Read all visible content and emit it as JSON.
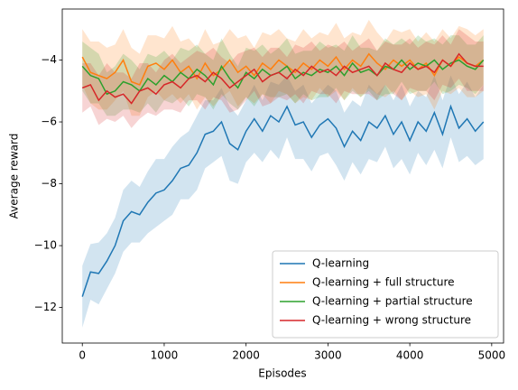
{
  "chart_data": {
    "type": "line",
    "xlabel": "Episodes",
    "ylabel": "Average reward",
    "x": [
      0,
      100,
      200,
      300,
      400,
      500,
      600,
      700,
      800,
      900,
      1000,
      1100,
      1200,
      1300,
      1400,
      1500,
      1600,
      1700,
      1800,
      1900,
      2000,
      2100,
      2200,
      2300,
      2400,
      2500,
      2600,
      2700,
      2800,
      2900,
      3000,
      3100,
      3200,
      3300,
      3400,
      3500,
      3600,
      3700,
      3800,
      3900,
      4000,
      4100,
      4200,
      4300,
      4400,
      4500,
      4600,
      4700,
      4800,
      4900
    ],
    "series": [
      {
        "name": "Q-learning",
        "color": "#1f77b4",
        "values": [
          -11.65,
          -10.85,
          -10.9,
          -10.5,
          -10.0,
          -9.2,
          -8.9,
          -9.0,
          -8.6,
          -8.3,
          -8.2,
          -7.9,
          -7.5,
          -7.4,
          -7.0,
          -6.4,
          -6.3,
          -6.0,
          -6.7,
          -6.9,
          -6.3,
          -5.9,
          -6.3,
          -5.8,
          -6.0,
          -5.5,
          -6.1,
          -6.0,
          -6.5,
          -6.1,
          -5.9,
          -6.2,
          -6.8,
          -6.3,
          -6.6,
          -6.0,
          -6.2,
          -5.8,
          -6.4,
          -6.0,
          -6.6,
          -6.0,
          -6.3,
          -5.7,
          -6.4,
          -5.5,
          -6.2,
          -5.9,
          -6.3,
          -6.0
        ],
        "error": [
          1.0,
          0.9,
          1.0,
          0.9,
          0.9,
          1.0,
          1.0,
          0.9,
          1.0,
          1.1,
          1.0,
          1.1,
          1.0,
          1.1,
          1.2,
          1.1,
          1.0,
          1.1,
          1.2,
          1.1,
          1.0,
          1.1,
          1.0,
          1.1,
          1.2,
          1.0,
          1.1,
          1.2,
          1.1,
          1.0,
          1.1,
          1.2,
          1.1,
          1.0,
          1.1,
          1.2,
          1.1,
          1.0,
          1.1,
          1.2,
          1.1,
          1.0,
          1.1,
          1.2,
          1.1,
          1.0,
          1.1,
          1.2,
          1.1,
          1.2
        ]
      },
      {
        "name": "Q-learning + full structure",
        "color": "#ff7f0e",
        "values": [
          -3.9,
          -4.4,
          -4.5,
          -4.6,
          -4.4,
          -4.0,
          -4.7,
          -4.8,
          -4.2,
          -4.1,
          -4.3,
          -4.0,
          -4.4,
          -4.2,
          -4.6,
          -4.1,
          -4.5,
          -4.3,
          -4.0,
          -4.4,
          -4.2,
          -4.5,
          -4.1,
          -4.3,
          -4.0,
          -4.2,
          -4.4,
          -4.1,
          -4.3,
          -4.0,
          -4.2,
          -3.9,
          -4.3,
          -4.0,
          -4.2,
          -3.8,
          -4.1,
          -4.3,
          -4.0,
          -4.2,
          -4.0,
          -4.3,
          -4.1,
          -4.5,
          -4.0,
          -4.2,
          -3.9,
          -4.1,
          -4.2,
          -4.0
        ],
        "error": [
          0.9,
          1.0,
          1.1,
          1.0,
          0.9,
          1.0,
          1.1,
          1.0,
          1.0,
          0.9,
          1.0,
          1.1,
          1.0,
          0.9,
          1.0,
          1.1,
          1.0,
          0.9,
          1.0,
          1.1,
          1.0,
          0.9,
          1.0,
          1.1,
          1.0,
          0.9,
          1.0,
          1.1,
          1.0,
          0.9,
          1.0,
          1.1,
          1.0,
          0.9,
          1.0,
          1.1,
          1.0,
          0.9,
          1.0,
          1.1,
          1.0,
          0.9,
          1.0,
          1.1,
          1.0,
          0.9,
          1.0,
          1.1,
          1.0,
          1.0
        ]
      },
      {
        "name": "Q-learning + partial structure",
        "color": "#2ca02c",
        "values": [
          -4.2,
          -4.5,
          -4.6,
          -5.1,
          -5.0,
          -4.7,
          -4.8,
          -5.0,
          -4.6,
          -4.8,
          -4.5,
          -4.7,
          -4.4,
          -4.6,
          -4.3,
          -4.5,
          -4.8,
          -4.2,
          -4.6,
          -4.9,
          -4.4,
          -4.6,
          -4.3,
          -4.5,
          -4.4,
          -4.2,
          -4.6,
          -4.4,
          -4.5,
          -4.3,
          -4.4,
          -4.2,
          -4.5,
          -4.1,
          -4.4,
          -4.3,
          -4.5,
          -4.2,
          -4.3,
          -4.0,
          -4.3,
          -4.1,
          -4.2,
          -4.0,
          -4.3,
          -4.1,
          -4.0,
          -4.2,
          -4.3,
          -4.0
        ],
        "error": [
          0.8,
          0.9,
          0.8,
          0.7,
          0.8,
          0.9,
          0.8,
          0.7,
          0.8,
          0.9,
          0.8,
          0.7,
          0.8,
          0.9,
          0.8,
          0.7,
          0.8,
          0.9,
          0.8,
          0.7,
          0.8,
          0.9,
          0.8,
          0.7,
          0.8,
          0.9,
          0.8,
          0.7,
          0.8,
          0.9,
          0.8,
          0.7,
          0.8,
          0.9,
          0.8,
          0.7,
          0.8,
          0.9,
          0.8,
          0.7,
          0.8,
          0.9,
          0.8,
          0.7,
          0.8,
          0.9,
          0.8,
          0.7,
          0.8,
          0.8
        ]
      },
      {
        "name": "Q-learning + wrong structure",
        "color": "#d62728",
        "values": [
          -4.9,
          -4.8,
          -5.3,
          -5.0,
          -5.2,
          -5.1,
          -5.4,
          -5.0,
          -4.9,
          -5.1,
          -4.8,
          -4.7,
          -4.9,
          -4.6,
          -4.5,
          -4.7,
          -4.4,
          -4.6,
          -4.9,
          -4.7,
          -4.5,
          -4.3,
          -4.7,
          -4.5,
          -4.4,
          -4.6,
          -4.3,
          -4.5,
          -4.2,
          -4.4,
          -4.3,
          -4.5,
          -4.2,
          -4.4,
          -4.3,
          -4.2,
          -4.5,
          -4.1,
          -4.3,
          -4.4,
          -4.1,
          -4.3,
          -4.2,
          -4.4,
          -4.0,
          -4.2,
          -3.8,
          -4.1,
          -4.2,
          -4.2
        ],
        "error": [
          0.8,
          0.7,
          0.8,
          0.9,
          0.8,
          0.7,
          0.8,
          0.9,
          0.8,
          0.7,
          0.8,
          0.9,
          0.8,
          0.7,
          0.8,
          0.9,
          0.8,
          0.7,
          0.8,
          0.9,
          0.8,
          0.7,
          0.8,
          0.9,
          0.8,
          0.7,
          0.8,
          0.9,
          0.8,
          0.7,
          0.8,
          0.9,
          0.8,
          0.7,
          0.8,
          0.9,
          0.8,
          0.7,
          0.8,
          0.9,
          0.8,
          0.7,
          0.8,
          0.9,
          0.8,
          0.7,
          0.8,
          0.9,
          0.8,
          0.8
        ]
      }
    ],
    "xlim": [
      -245,
      5145
    ],
    "xticks": [
      0,
      1000,
      2000,
      3000,
      4000,
      5000
    ],
    "ylim": [
      -13.15,
      -2.35
    ],
    "yticks": [
      {
        "value": -12,
        "label": "−12"
      },
      {
        "value": -10,
        "label": "−10"
      },
      {
        "value": -8,
        "label": "−8"
      },
      {
        "value": -6,
        "label": "−6"
      },
      {
        "value": -4,
        "label": "−4"
      }
    ],
    "band_opacity": 0.2,
    "legend": "lower right",
    "grid": false
  }
}
